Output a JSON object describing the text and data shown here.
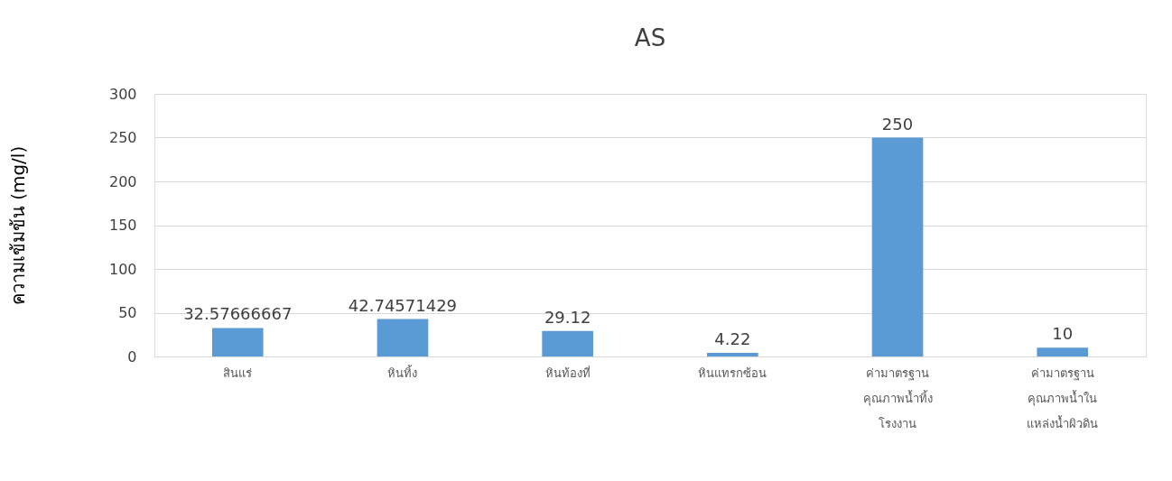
{
  "chart_data": {
    "type": "bar",
    "title": "AS",
    "ylabel": "ความเข้มข้น (mg/l)",
    "categories": [
      "สินแร่",
      "หินทิ้ง",
      "หินท้องที่",
      "หินแทรกซ้อน",
      "ค่ามาตรฐาน\nคุณภาพน้ำทิ้ง\nโรงงาน",
      "ค่ามาตรฐาน\nคุณภาพน้ำใน\nแหล่งน้ำผิวดิน"
    ],
    "values": [
      32.57666667,
      42.74571429,
      29.12,
      4.22,
      250,
      10
    ],
    "color": "#5b9bd5",
    "ylim": [
      0,
      300
    ],
    "yticks": [
      0,
      50,
      100,
      150,
      200,
      250,
      300
    ],
    "grid": "y",
    "data_labels": true
  }
}
